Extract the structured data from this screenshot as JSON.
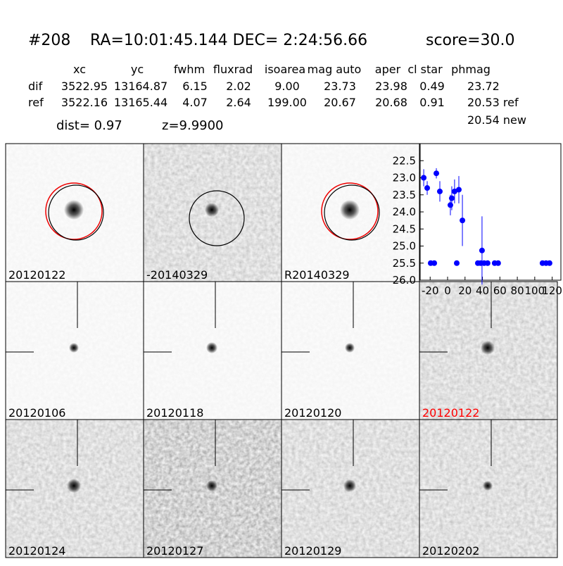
{
  "header": {
    "id": "#208",
    "coords": "RA=10:01:45.144 DEC= 2:24:56.66",
    "score": "score=30.0"
  },
  "table": {
    "columns": [
      "xc",
      "yc",
      "fwhm",
      "fluxrad",
      "isoarea",
      "mag auto",
      "aper",
      "cl star",
      "phmag"
    ],
    "rows": [
      [
        "dif",
        "3522.95",
        "13164.87",
        "6.15",
        "2.02",
        "9.00",
        "23.73",
        "23.98",
        "0.49",
        "23.72"
      ],
      [
        "ref",
        "3522.16",
        "13165.44",
        "4.07",
        "2.64",
        "199.00",
        "20.67",
        "20.68",
        "0.91",
        "20.53 ref"
      ]
    ],
    "extra": "20.54 new",
    "dist": "dist=  0.97",
    "z": "z=9.9900"
  },
  "stamps": [
    {
      "label": "20120122",
      "color": "#000000"
    },
    {
      "label": "-20140329",
      "color": "#000000"
    },
    {
      "label": "R20140329",
      "color": "#000000"
    },
    {
      "label": "20120106",
      "color": "#000000"
    },
    {
      "label": "20120118",
      "color": "#000000"
    },
    {
      "label": "20120120",
      "color": "#000000"
    },
    {
      "label": "20120122",
      "color": "#ff0000"
    },
    {
      "label": "20120124",
      "color": "#000000"
    },
    {
      "label": "20120127",
      "color": "#000000"
    },
    {
      "label": "20120129",
      "color": "#000000"
    },
    {
      "label": "20120202",
      "color": "#000000"
    }
  ],
  "chart_data": {
    "type": "scatter",
    "color": "#0000ff",
    "x": [
      -27.4,
      -23.4,
      -19.4,
      -15.3,
      -12.9,
      -8.9,
      3.2,
      4.8,
      8,
      12.9,
      10.5,
      17,
      34.7,
      37.9,
      39.5,
      41.9,
      45.9,
      54,
      58,
      108.9,
      113,
      117
    ],
    "values": [
      23.0,
      23.3,
      25.5,
      25.5,
      22.87,
      23.4,
      23.8,
      23.6,
      23.4,
      23.35,
      25.5,
      24.25,
      25.5,
      25.5,
      25.13,
      25.5,
      25.5,
      25.5,
      25.5,
      25.5,
      25.5,
      25.5
    ],
    "errors": [
      0.25,
      0.2,
      0.05,
      0.05,
      0.15,
      0.3,
      0.3,
      0.35,
      0.35,
      0.4,
      0.05,
      0.75,
      0.05,
      0.05,
      1.0,
      0.05,
      0.05,
      0.05,
      0.05,
      0.05,
      0.05,
      0.05
    ],
    "xlim": [
      -31.5,
      130
    ],
    "ylim": [
      26.0,
      22.0
    ],
    "xticks": [
      -20,
      0,
      20,
      40,
      60,
      80,
      100,
      120
    ],
    "yticks": [
      22.5,
      {
        "value": 23,
        "label": "23.0"
      },
      23.5,
      {
        "value": 24,
        "label": "24.0"
      },
      24.5,
      {
        "value": 25,
        "label": "25.0"
      },
      25.5,
      {
        "value": 26,
        "label": "26.0"
      }
    ]
  }
}
